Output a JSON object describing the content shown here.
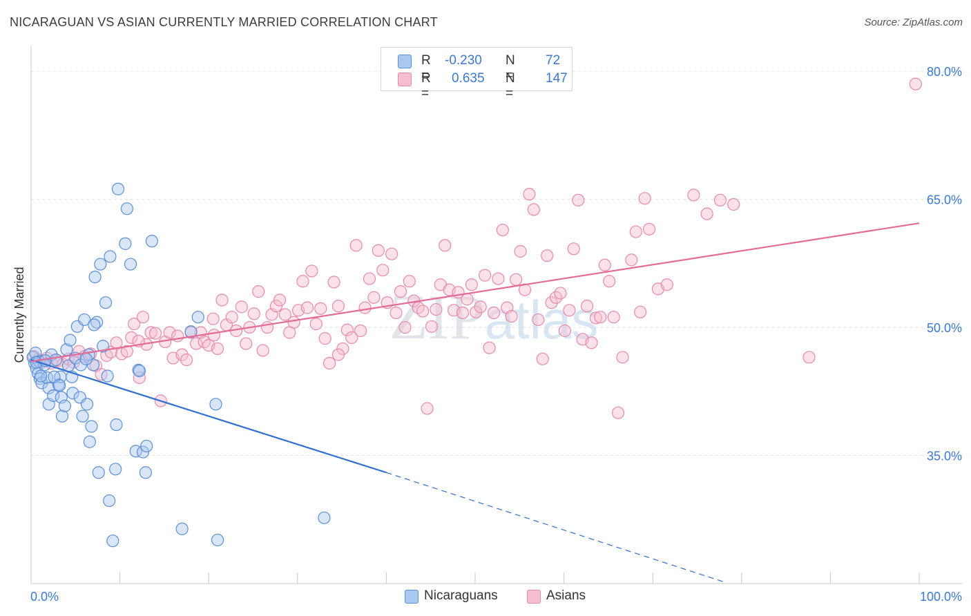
{
  "header": {
    "title": "NICARAGUAN VS ASIAN CURRENTLY MARRIED CORRELATION CHART",
    "source": "Source: ZipAtlas.com"
  },
  "legend_top": {
    "rows": [
      {
        "r_label": "R =",
        "r_value": "-0.230",
        "n_label": "N =",
        "n_value": "72"
      },
      {
        "r_label": "R =",
        "r_value": "0.635",
        "n_label": "N =",
        "n_value": "147"
      }
    ]
  },
  "legend_bottom": {
    "items": [
      "Nicaraguans",
      "Asians"
    ]
  },
  "colors": {
    "blue_fill": "#aac8f0",
    "blue_stroke": "#5a8fd8",
    "blue_line": "#2e6fd0",
    "pink_fill": "#f6bfd0",
    "pink_stroke": "#e889a8",
    "pink_line": "#e36b96",
    "axis_label": "#3a78d4",
    "grid": "#e2e2e2"
  },
  "chart_data": {
    "type": "scatter",
    "title": "NICARAGUAN VS ASIAN CURRENTLY MARRIED CORRELATION CHART",
    "xlabel": "",
    "ylabel": "Currently Married",
    "xlim": [
      0,
      100
    ],
    "ylim": [
      20,
      83
    ],
    "x_tick_labels": [
      "0.0%",
      "100.0%"
    ],
    "y_ticks": [
      35,
      50,
      65,
      80
    ],
    "y_tick_labels": [
      "35.0%",
      "50.0%",
      "65.0%",
      "80.0%"
    ],
    "grid": true,
    "watermark": "ZIPatlas",
    "series": [
      {
        "name": "Nicaraguans",
        "r": -0.23,
        "n": 72,
        "trend": {
          "x0": 0,
          "y0": 46.2,
          "x1": 40,
          "y1": 33.0,
          "dashed_to_x": 78,
          "dashed_to_y": 20.2
        },
        "points": [
          [
            0.2,
            46.5
          ],
          [
            0.4,
            45.8
          ],
          [
            0.6,
            45.2
          ],
          [
            0.8,
            44.6
          ],
          [
            1.0,
            44.0
          ],
          [
            1.2,
            43.5
          ],
          [
            0.5,
            47.0
          ],
          [
            0.9,
            46.0
          ],
          [
            1.5,
            45.6
          ],
          [
            1.8,
            44.1
          ],
          [
            2.0,
            42.9
          ],
          [
            2.3,
            46.8
          ],
          [
            2.0,
            41.0
          ],
          [
            2.5,
            42.0
          ],
          [
            2.8,
            46.2
          ],
          [
            3.1,
            43.3
          ],
          [
            3.3,
            44.2
          ],
          [
            3.4,
            41.8
          ],
          [
            3.5,
            39.6
          ],
          [
            3.8,
            40.8
          ],
          [
            4.0,
            47.4
          ],
          [
            4.2,
            45.5
          ],
          [
            4.4,
            48.5
          ],
          [
            4.6,
            44.2
          ],
          [
            4.7,
            42.3
          ],
          [
            5.0,
            46.4
          ],
          [
            5.2,
            50.1
          ],
          [
            5.5,
            41.8
          ],
          [
            5.8,
            39.6
          ],
          [
            6.0,
            50.9
          ],
          [
            6.3,
            41.0
          ],
          [
            6.5,
            46.8
          ],
          [
            6.6,
            36.6
          ],
          [
            6.8,
            38.4
          ],
          [
            7.0,
            45.6
          ],
          [
            7.2,
            55.9
          ],
          [
            7.4,
            50.6
          ],
          [
            7.6,
            33.0
          ],
          [
            7.8,
            57.4
          ],
          [
            8.1,
            47.8
          ],
          [
            8.4,
            52.9
          ],
          [
            8.6,
            44.3
          ],
          [
            8.8,
            29.7
          ],
          [
            8.9,
            58.3
          ],
          [
            9.2,
            25.0
          ],
          [
            9.5,
            33.4
          ],
          [
            9.6,
            38.6
          ],
          [
            9.8,
            66.2
          ],
          [
            10.6,
            59.8
          ],
          [
            10.8,
            63.9
          ],
          [
            11.2,
            57.4
          ],
          [
            11.8,
            35.5
          ],
          [
            12.1,
            45.0
          ],
          [
            12.2,
            44.9
          ],
          [
            12.6,
            35.4
          ],
          [
            12.9,
            33.0
          ],
          [
            13.0,
            36.1
          ],
          [
            13.6,
            60.1
          ],
          [
            17.0,
            26.4
          ],
          [
            18.0,
            49.5
          ],
          [
            18.8,
            51.2
          ],
          [
            20.8,
            41.0
          ],
          [
            21.0,
            25.1
          ],
          [
            33.0,
            27.7
          ],
          [
            1.1,
            44.3
          ],
          [
            0.6,
            45.9
          ],
          [
            1.6,
            46.1
          ],
          [
            2.6,
            44.2
          ],
          [
            3.2,
            43.2
          ],
          [
            5.6,
            45.6
          ],
          [
            6.2,
            46.3
          ],
          [
            7.1,
            50.3
          ]
        ]
      },
      {
        "name": "Asians",
        "r": 0.635,
        "n": 147,
        "trend": {
          "x0": 0,
          "y0": 46.0,
          "x1": 100,
          "y1": 62.2
        },
        "points": [
          [
            0.3,
            46.6
          ],
          [
            0.8,
            46.2
          ],
          [
            1.2,
            45.9
          ],
          [
            1.8,
            46.4
          ],
          [
            2.3,
            45.8
          ],
          [
            3.0,
            46.1
          ],
          [
            3.6,
            45.7
          ],
          [
            4.2,
            46.3
          ],
          [
            4.8,
            45.9
          ],
          [
            5.4,
            47.2
          ],
          [
            6.0,
            46.6
          ],
          [
            6.7,
            46.9
          ],
          [
            7.3,
            45.5
          ],
          [
            7.9,
            44.5
          ],
          [
            8.5,
            46.7
          ],
          [
            9.0,
            47.1
          ],
          [
            9.6,
            48.2
          ],
          [
            10.2,
            46.9
          ],
          [
            10.8,
            47.2
          ],
          [
            11.3,
            48.8
          ],
          [
            11.6,
            50.4
          ],
          [
            12.2,
            44.1
          ],
          [
            12.6,
            51.2
          ],
          [
            13.0,
            48.0
          ],
          [
            13.5,
            49.4
          ],
          [
            14.0,
            49.3
          ],
          [
            14.6,
            41.4
          ],
          [
            15.1,
            48.3
          ],
          [
            15.6,
            49.4
          ],
          [
            16.0,
            46.4
          ],
          [
            16.5,
            49.0
          ],
          [
            17.0,
            46.8
          ],
          [
            17.5,
            46.2
          ],
          [
            18.0,
            49.4
          ],
          [
            18.6,
            48.1
          ],
          [
            19.1,
            49.4
          ],
          [
            19.5,
            48.3
          ],
          [
            20.0,
            47.9
          ],
          [
            20.5,
            51.0
          ],
          [
            21.0,
            47.5
          ],
          [
            21.5,
            53.2
          ],
          [
            22.0,
            50.3
          ],
          [
            22.6,
            51.2
          ],
          [
            23.1,
            49.6
          ],
          [
            23.7,
            52.4
          ],
          [
            24.2,
            48.1
          ],
          [
            24.6,
            50.0
          ],
          [
            25.1,
            51.6
          ],
          [
            25.6,
            54.2
          ],
          [
            26.1,
            47.3
          ],
          [
            26.6,
            50.0
          ],
          [
            27.1,
            51.5
          ],
          [
            27.6,
            52.5
          ],
          [
            28.0,
            53.2
          ],
          [
            28.6,
            51.5
          ],
          [
            29.1,
            49.4
          ],
          [
            29.6,
            50.6
          ],
          [
            30.1,
            52.0
          ],
          [
            30.6,
            55.4
          ],
          [
            31.1,
            52.3
          ],
          [
            31.6,
            56.6
          ],
          [
            32.1,
            50.4
          ],
          [
            32.6,
            52.2
          ],
          [
            33.1,
            48.7
          ],
          [
            33.6,
            45.8
          ],
          [
            34.1,
            55.3
          ],
          [
            34.6,
            52.5
          ],
          [
            35.1,
            47.5
          ],
          [
            35.6,
            49.7
          ],
          [
            36.1,
            48.8
          ],
          [
            36.6,
            59.6
          ],
          [
            37.1,
            49.6
          ],
          [
            37.6,
            52.3
          ],
          [
            38.1,
            55.7
          ],
          [
            38.6,
            53.5
          ],
          [
            39.1,
            59.0
          ],
          [
            39.6,
            56.7
          ],
          [
            40.1,
            52.9
          ],
          [
            40.6,
            58.6
          ],
          [
            41.1,
            51.7
          ],
          [
            41.6,
            54.2
          ],
          [
            42.1,
            50.0
          ],
          [
            42.6,
            55.4
          ],
          [
            43.1,
            53.1
          ],
          [
            43.6,
            52.3
          ],
          [
            44.1,
            51.9
          ],
          [
            44.6,
            40.5
          ],
          [
            45.1,
            50.1
          ],
          [
            45.6,
            52.1
          ],
          [
            46.1,
            55.0
          ],
          [
            46.6,
            59.6
          ],
          [
            47.1,
            54.4
          ],
          [
            47.6,
            52.0
          ],
          [
            48.1,
            54.1
          ],
          [
            48.6,
            51.7
          ],
          [
            49.1,
            53.3
          ],
          [
            49.6,
            55.0
          ],
          [
            50.1,
            51.8
          ],
          [
            50.6,
            52.4
          ],
          [
            51.1,
            56.1
          ],
          [
            51.6,
            47.6
          ],
          [
            52.1,
            51.7
          ],
          [
            52.6,
            55.7
          ],
          [
            53.1,
            61.4
          ],
          [
            53.6,
            52.3
          ],
          [
            54.1,
            51.3
          ],
          [
            54.6,
            55.6
          ],
          [
            55.1,
            58.9
          ],
          [
            55.6,
            54.4
          ],
          [
            56.1,
            65.6
          ],
          [
            56.6,
            63.8
          ],
          [
            57.1,
            50.9
          ],
          [
            57.6,
            46.3
          ],
          [
            58.1,
            58.4
          ],
          [
            58.6,
            52.9
          ],
          [
            59.1,
            53.5
          ],
          [
            59.6,
            54.0
          ],
          [
            60.1,
            49.6
          ],
          [
            60.6,
            52.0
          ],
          [
            61.1,
            59.2
          ],
          [
            61.6,
            64.9
          ],
          [
            62.1,
            48.6
          ],
          [
            62.6,
            52.5
          ],
          [
            63.1,
            48.2
          ],
          [
            63.6,
            51.1
          ],
          [
            64.1,
            51.2
          ],
          [
            64.6,
            57.3
          ],
          [
            65.1,
            55.4
          ],
          [
            65.6,
            51.2
          ],
          [
            66.1,
            40.0
          ],
          [
            66.6,
            46.5
          ],
          [
            67.6,
            57.9
          ],
          [
            68.1,
            61.2
          ],
          [
            68.6,
            51.8
          ],
          [
            69.1,
            65.1
          ],
          [
            69.6,
            61.5
          ],
          [
            70.6,
            54.5
          ],
          [
            71.6,
            55.0
          ],
          [
            74.6,
            65.5
          ],
          [
            76.1,
            63.3
          ],
          [
            77.6,
            64.9
          ],
          [
            79.1,
            64.4
          ],
          [
            87.6,
            46.5
          ],
          [
            99.6,
            78.5
          ],
          [
            34.6,
            46.8
          ],
          [
            20.6,
            49.1
          ],
          [
            12.1,
            48.4
          ]
        ]
      }
    ]
  }
}
